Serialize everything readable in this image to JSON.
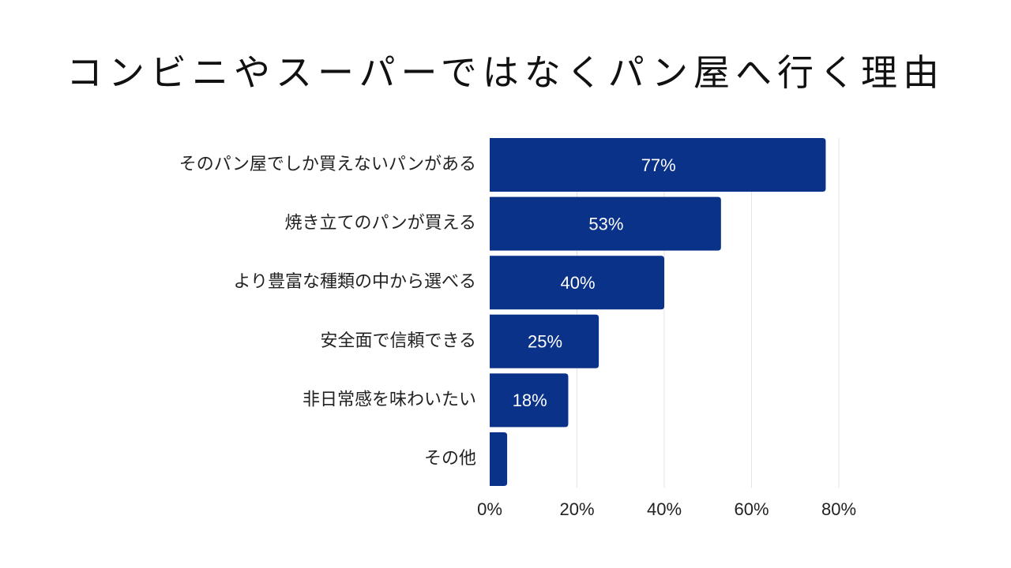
{
  "chart_data": {
    "type": "bar",
    "orientation": "horizontal",
    "title": "コンビニやスーパーではなくパン屋へ行く理由",
    "categories": [
      "そのパン屋でしか買えないパンがある",
      "焼き立てのパンが買える",
      "より豊富な種類の中から選べる",
      "安全面で信頼できる",
      "非日常感を味わいたい",
      "その他"
    ],
    "values": [
      77,
      53,
      40,
      25,
      18,
      4
    ],
    "data_labels": [
      "77%",
      "53%",
      "40%",
      "25%",
      "18%",
      ""
    ],
    "xlim": [
      0,
      80
    ],
    "x_ticks": [
      0,
      20,
      40,
      60,
      80
    ],
    "x_tick_labels": [
      "0%",
      "20%",
      "40%",
      "60%",
      "80%"
    ],
    "grid": true,
    "legend": "none",
    "colors": {
      "bar": "#0b3289",
      "grid": "#e3e3e3",
      "text": "#222222",
      "label_on_bar": "#ffffff"
    }
  }
}
